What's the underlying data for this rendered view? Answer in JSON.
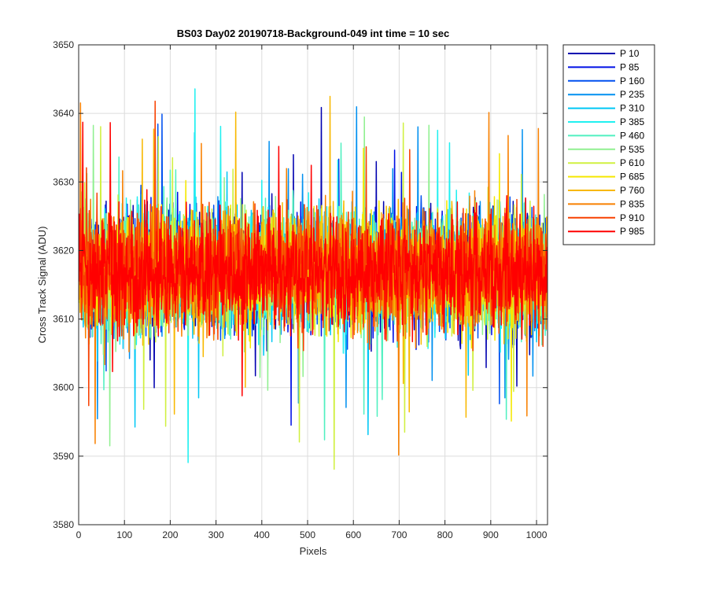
{
  "chart_data": {
    "type": "line",
    "title": "BS03 Day02 20190718-Background-049 int time = 10 sec",
    "xlabel": "Pixels",
    "ylabel": "Cross Track Signal (ADU)",
    "xlim": [
      0,
      1024
    ],
    "ylim": [
      3580,
      3650
    ],
    "xticks": [
      0,
      100,
      200,
      300,
      400,
      500,
      600,
      700,
      800,
      900,
      1000
    ],
    "yticks": [
      3580,
      3590,
      3600,
      3610,
      3620,
      3630,
      3640,
      3650
    ],
    "grid": true,
    "legend_position": "outside-top-right",
    "noise_model": {
      "mean": 3617,
      "spread": 14,
      "samples_per_series": 1024
    },
    "series": [
      {
        "name": "P 10",
        "color": "#0000b0"
      },
      {
        "name": "P 85",
        "color": "#0010e6"
      },
      {
        "name": "P 160",
        "color": "#0050f0"
      },
      {
        "name": "P 235",
        "color": "#0090f0"
      },
      {
        "name": "P 310",
        "color": "#00c8f5"
      },
      {
        "name": "P 385",
        "color": "#20f0f0"
      },
      {
        "name": "P 460",
        "color": "#50f0c0"
      },
      {
        "name": "P 535",
        "color": "#90f090"
      },
      {
        "name": "P 610",
        "color": "#d0f040"
      },
      {
        "name": "P 685",
        "color": "#f5e800"
      },
      {
        "name": "P 760",
        "color": "#f8b800"
      },
      {
        "name": "P 835",
        "color": "#f88000"
      },
      {
        "name": "P 910",
        "color": "#f84000"
      },
      {
        "name": "P 985",
        "color": "#ff0000"
      }
    ]
  }
}
